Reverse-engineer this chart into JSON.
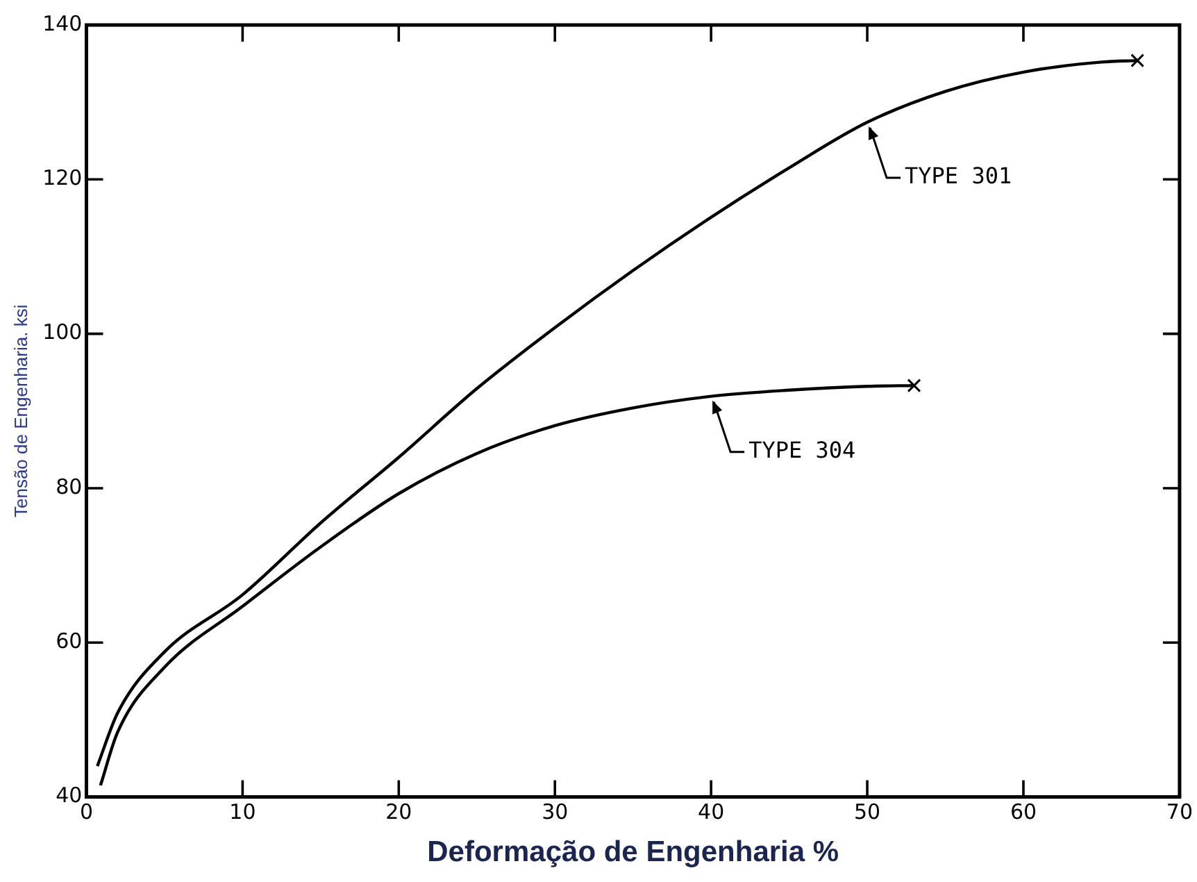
{
  "chart_data": {
    "type": "line",
    "xlabel": "Deformação de Engenharia %",
    "ylabel": "Tensão de Engenharia. ksi",
    "xlim": [
      0,
      70
    ],
    "xticks": [
      0,
      10,
      20,
      30,
      40,
      50,
      60,
      70
    ],
    "ylim": [
      40,
      140
    ],
    "yticks": [
      40,
      60,
      80,
      100,
      120,
      140
    ],
    "grid": false,
    "legend": false,
    "marker": "none",
    "line_style": "solid",
    "series": [
      {
        "color": "#000000",
        "x": [
          0.7,
          2,
          5,
          10,
          15,
          20,
          25,
          30,
          35,
          40,
          45,
          50,
          55,
          60,
          65,
          67.3
        ],
        "values": [
          44,
          50.9,
          58.8,
          66.2,
          75.5,
          84,
          92.9,
          100.8,
          108.2,
          115.1,
          121.5,
          127.4,
          131.4,
          133.9,
          135.2,
          135.4
        ]
      },
      {
        "color": "#000000",
        "x": [
          0.9,
          2,
          5,
          10,
          15,
          20,
          25,
          30,
          35,
          40,
          45,
          50,
          53
        ],
        "values": [
          41.5,
          48.4,
          56.8,
          64.7,
          72.4,
          79.3,
          84.5,
          88.1,
          90.4,
          91.9,
          92.7,
          93.2,
          93.3
        ]
      },
      {
        "type": "scatter",
        "color": "#000000",
        "marker": "cross",
        "x": [
          67.3,
          53
        ],
        "values": [
          135.4,
          93.3
        ]
      }
    ],
    "annotations": [
      {
        "text": "TYPE 301",
        "x": 50,
        "y": 127.4
      },
      {
        "text": "TYPE 304",
        "x": 40,
        "y": 91.9
      }
    ]
  }
}
